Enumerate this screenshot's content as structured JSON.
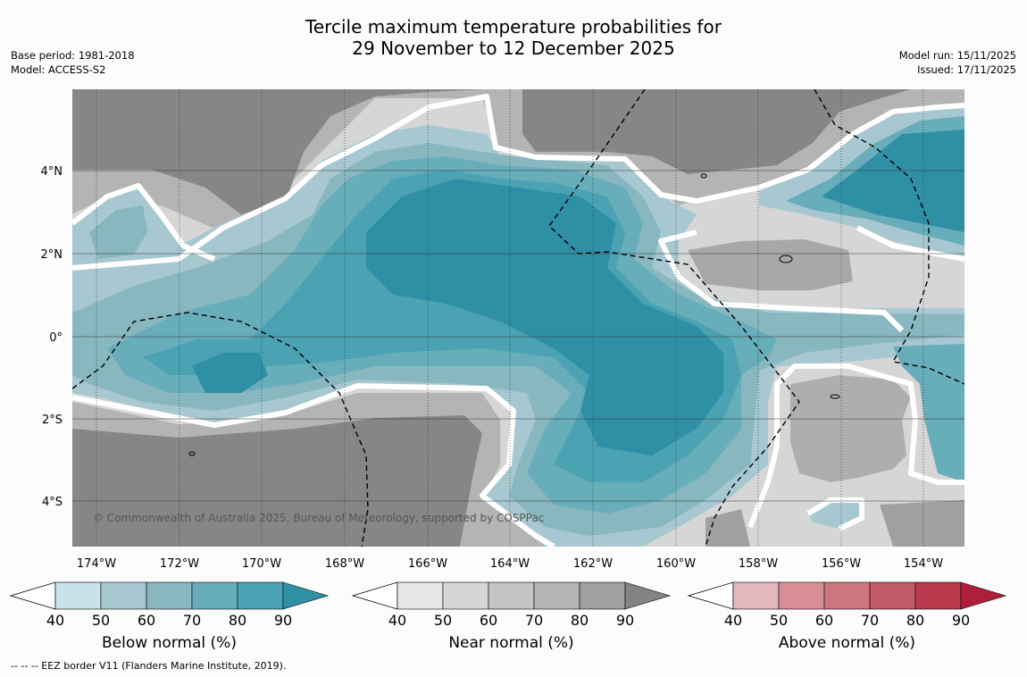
{
  "header": {
    "title_line1": "Tercile maximum temperature probabilities for",
    "title_line2": "29 November to 12 December 2025",
    "base_period": "Base period: 1981-2018",
    "model": "Model: ACCESS-S2",
    "model_run": "Model run: 15/11/2025",
    "issued": "Issued: 17/11/2025"
  },
  "map": {
    "x_ticks": [
      "174°W",
      "172°W",
      "170°W",
      "168°W",
      "166°W",
      "164°W",
      "162°W",
      "160°W",
      "158°W",
      "156°W",
      "154°W"
    ],
    "y_ticks": [
      "4°N",
      "2°N",
      "0°",
      "2°S",
      "4°S"
    ],
    "copyright": "© Commonwealth of Australia 2025, Bureau of Meteorology, supported by COSPPac"
  },
  "colorbars": [
    {
      "title": "Below normal (%)",
      "ticks": [
        "40",
        "50",
        "60",
        "70",
        "80",
        "90"
      ],
      "colors": [
        "#c8e2ea",
        "#a7c8d0",
        "#88b7c0",
        "#67adba",
        "#4aa2b2",
        "#2f90a5"
      ]
    },
    {
      "title": "Near normal (%)",
      "ticks": [
        "40",
        "50",
        "60",
        "70",
        "80",
        "90"
      ],
      "colors": [
        "#e6e6e6",
        "#d6d6d6",
        "#c4c4c4",
        "#b4b4b4",
        "#a0a0a0",
        "#838383"
      ]
    },
    {
      "title": "Above normal (%)",
      "ticks": [
        "40",
        "50",
        "60",
        "70",
        "80",
        "90"
      ],
      "colors": [
        "#e3b7bc",
        "#d98f98",
        "#cd7680",
        "#c35a67",
        "#b93a4d",
        "#ad1f3a"
      ]
    }
  ],
  "footnote": "-- -- -- EEZ border V11 (Flanders Marine Institute, 2019)."
}
